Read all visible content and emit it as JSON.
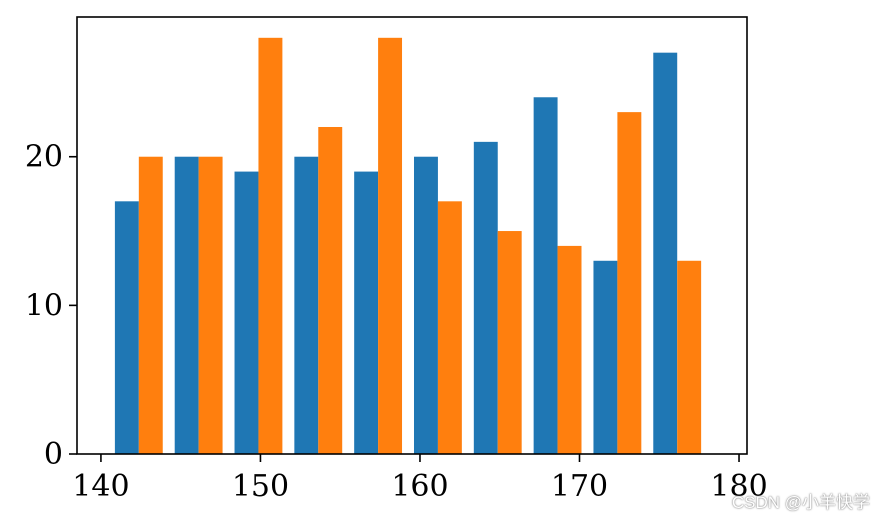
{
  "chart_data": {
    "type": "bar",
    "title": "",
    "xlabel": "",
    "ylabel": "",
    "bin_starts": [
      140.5,
      144.25,
      148.0,
      151.75,
      155.5,
      159.25,
      163.0,
      166.75,
      170.5,
      174.25
    ],
    "bin_width": 3.75,
    "series": [
      {
        "color": "#1f77b4",
        "values": [
          17,
          20,
          19,
          20,
          19,
          20,
          21,
          24,
          13,
          27
        ]
      },
      {
        "color": "#ff7f0e",
        "values": [
          20,
          20,
          28,
          22,
          28,
          17,
          15,
          14,
          23,
          13
        ]
      }
    ],
    "xlim": [
      138.5,
      180.5
    ],
    "ylim": [
      0,
      29.4
    ],
    "xticks": [
      140,
      150,
      160,
      170,
      180
    ],
    "yticks": [
      0,
      10,
      20
    ],
    "grid": false
  },
  "watermark": {
    "text": "CSDN @小羊快学"
  }
}
